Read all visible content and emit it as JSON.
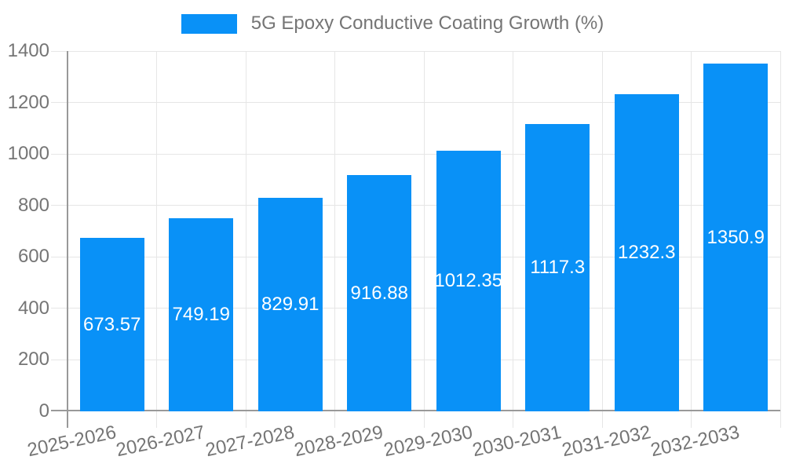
{
  "legend": {
    "label": "5G Epoxy Conductive Coating Growth (%)",
    "position": "top"
  },
  "colors": {
    "bar": "#0991F7",
    "grid": "#E6E6E6",
    "axis": "#999999",
    "text": "#757575",
    "value_label": "#FFFFFF",
    "background": "#FFFFFF"
  },
  "chart_data": {
    "type": "bar",
    "title": "5G Epoxy Conductive Coating Growth (%)",
    "series_name": "5G Epoxy Conductive Coating Growth (%)",
    "categories": [
      "2025-2026",
      "2026-2027",
      "2027-2028",
      "2028-2029",
      "2029-2030",
      "2030-2031",
      "2031-2032",
      "2032-2033"
    ],
    "values": [
      673.57,
      749.19,
      829.91,
      916.88,
      1012.35,
      1117.3,
      1232.3,
      1350.9
    ],
    "value_labels_position": "inside-center",
    "xlabel": "",
    "ylabel": "",
    "ylim": [
      0,
      1400
    ],
    "yticks": [
      0,
      200,
      400,
      600,
      800,
      1000,
      1200,
      1400
    ],
    "grid": true,
    "xtick_rotation_deg": -12,
    "legend_position": "top-center"
  }
}
